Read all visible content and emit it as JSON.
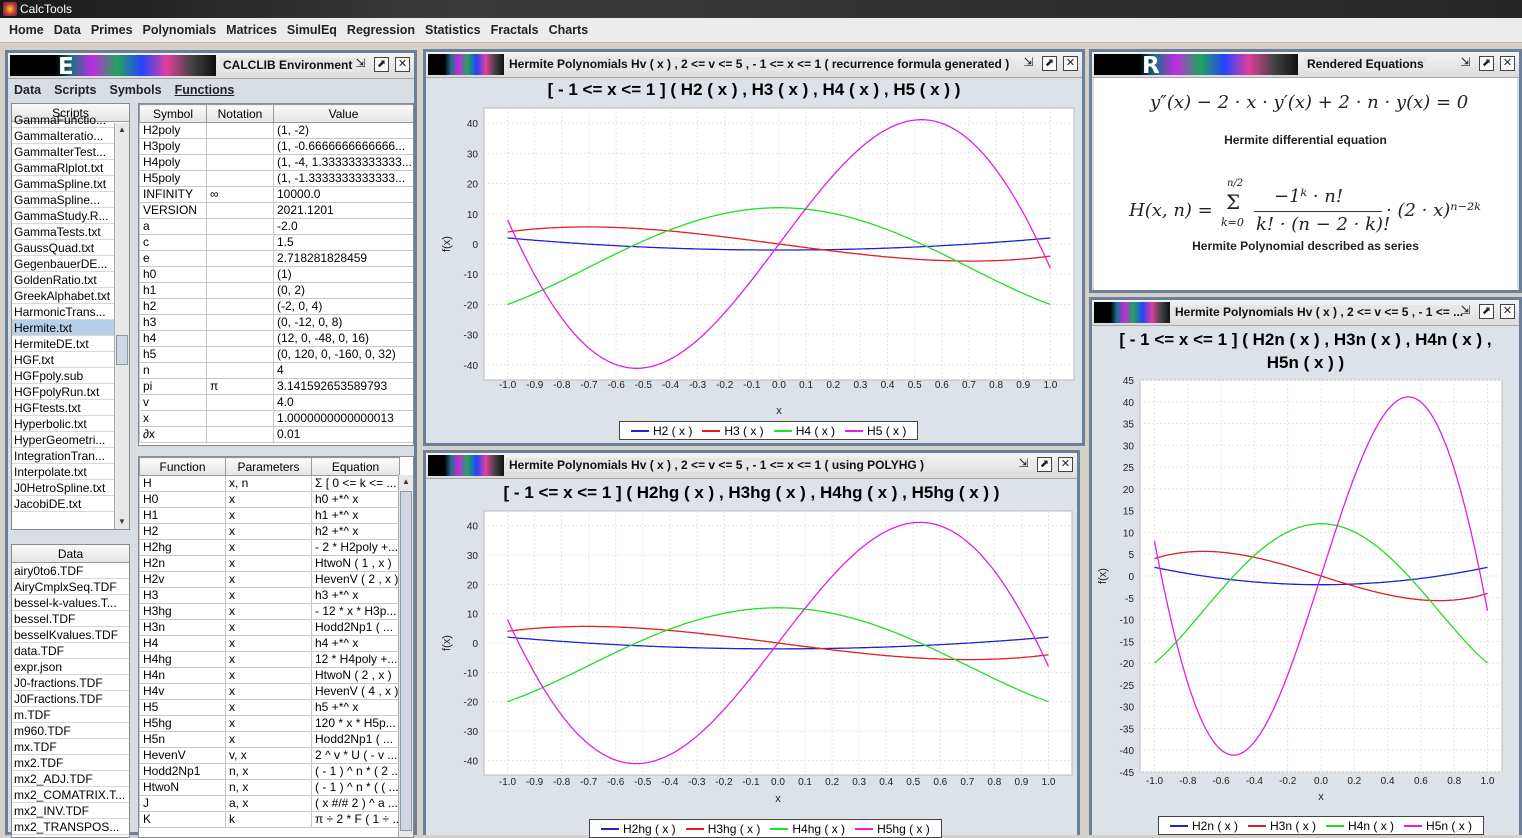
{
  "app": {
    "title": "CalcTools"
  },
  "menu": [
    "Home",
    "Data",
    "Primes",
    "Polynomials",
    "Matrices",
    "SimulEq",
    "Regression",
    "Statistics",
    "Fractals",
    "Charts"
  ],
  "env": {
    "title": "CALCLIB Environment",
    "logo_letter": "E",
    "tabs": [
      "Data",
      "Scripts",
      "Symbols",
      "Functions"
    ],
    "scripts_header": "Scripts",
    "scripts": [
      "GammaFunctio...",
      "GammaIteratio...",
      "GammaIterTest...",
      "GammaRlplot.txt",
      "GammaSpline.txt",
      "GammaSpline...",
      "GammaStudy.R...",
      "GammaTests.txt",
      "GaussQuad.txt",
      "GegenbauerDE...",
      "GoldenRatio.txt",
      "GreekAlphabet.txt",
      "HarmonicTrans...",
      "Hermite.txt",
      "HermiteDE.txt",
      "HGF.txt",
      "HGFpoly.sub",
      "HGFpolyRun.txt",
      "HGFtests.txt",
      "Hyperbolic.txt",
      "HyperGeometri...",
      "IntegrationTran...",
      "Interpolate.txt",
      "J0HetroSpline.txt",
      "JacobiDE.txt"
    ],
    "scripts_selected": "Hermite.txt",
    "data_header": "Data",
    "data_files": [
      "airy0to6.TDF",
      "AiryCmplxSeq.TDF",
      "bessel-k-values.T...",
      "bessel.TDF",
      "besselKvalues.TDF",
      "data.TDF",
      "expr.json",
      "J0-fractions.TDF",
      "J0Fractions.TDF",
      "m.TDF",
      "m960.TDF",
      "mx.TDF",
      "mx2.TDF",
      "mx2_ADJ.TDF",
      "mx2_COMATRIX.T...",
      "mx2_INV.TDF",
      "mx2_TRANSPOS..."
    ],
    "symbols_headers": [
      "Symbol",
      "Notation",
      "Value"
    ],
    "symbols": [
      [
        "H2poly",
        "",
        "(1, -2)"
      ],
      [
        "H3poly",
        "",
        "(1, -0.6666666666666..."
      ],
      [
        "H4poly",
        "",
        "(1, -4, 1.333333333333..."
      ],
      [
        "H5poly",
        "",
        "(1, -1.3333333333333..."
      ],
      [
        "INFINITY",
        "∞",
        "10000.0"
      ],
      [
        "VERSION",
        "",
        "2021.1201"
      ],
      [
        "a",
        "",
        "-2.0"
      ],
      [
        "c",
        "",
        "1.5"
      ],
      [
        "e",
        "",
        "2.718281828459"
      ],
      [
        "h0",
        "",
        "(1)"
      ],
      [
        "h1",
        "",
        "(0, 2)"
      ],
      [
        "h2",
        "",
        "(-2, 0, 4)"
      ],
      [
        "h3",
        "",
        "(0, -12, 0, 8)"
      ],
      [
        "h4",
        "",
        "(12, 0, -48, 0, 16)"
      ],
      [
        "h5",
        "",
        "(0, 120, 0, -160, 0, 32)"
      ],
      [
        "n",
        "",
        "4"
      ],
      [
        "pi",
        "π",
        "3.141592653589793"
      ],
      [
        "v",
        "",
        "4.0"
      ],
      [
        "x",
        "",
        "1.0000000000000013"
      ],
      [
        "∂x",
        "",
        "0.01"
      ]
    ],
    "functions_headers": [
      "Function",
      "Parameters",
      "Equation"
    ],
    "functions": [
      [
        "H",
        "x, n",
        "Σ [ 0 <= k <= ..."
      ],
      [
        "H0",
        "x",
        "h0 +*^ x"
      ],
      [
        "H1",
        "x",
        "h1 +*^ x"
      ],
      [
        "H2",
        "x",
        "h2 +*^ x"
      ],
      [
        "H2hg",
        "x",
        "- 2 * H2poly +..."
      ],
      [
        "H2n",
        "x",
        "HtwoN ( 1 , x )"
      ],
      [
        "H2v",
        "x",
        "HevenV ( 2 , x )"
      ],
      [
        "H3",
        "x",
        "h3 +*^ x"
      ],
      [
        "H3hg",
        "x",
        "- 12 * x * H3p..."
      ],
      [
        "H3n",
        "x",
        "Hodd2Np1 ( ..."
      ],
      [
        "H4",
        "x",
        "h4 +*^ x"
      ],
      [
        "H4hg",
        "x",
        "12 * H4poly +..."
      ],
      [
        "H4n",
        "x",
        "HtwoN ( 2 , x )"
      ],
      [
        "H4v",
        "x",
        "HevenV ( 4 , x )"
      ],
      [
        "H5",
        "x",
        "h5 +*^ x"
      ],
      [
        "H5hg",
        "x",
        "120 * x * H5p..."
      ],
      [
        "H5n",
        "x",
        "Hodd2Np1 ( ..."
      ],
      [
        "HevenV",
        "v, x",
        "2 ^ v * U ( - v ..."
      ],
      [
        "Hodd2Np1",
        "n, x",
        "( - 1 ) ^ n * ( 2 ..."
      ],
      [
        "HtwoN",
        "n, x",
        "( - 1 ) ^ n * ( ( ..."
      ],
      [
        "J",
        "a, x",
        "( x #/# 2 ) ^ a ..."
      ],
      [
        "K",
        "k",
        "π ÷ 2 * F ( 1 ÷ ..."
      ]
    ]
  },
  "rendered": {
    "title": "Rendered Equations",
    "logo_letter": "R",
    "eq1": "y″(x) − 2 · x · y′(x) + 2 · n · y(x) = 0",
    "cap1": "Hermite differential equation",
    "eq2_left": "H(x, n) =",
    "eq2_sum_top": "n/2",
    "eq2_sum_bottom": "k=0",
    "eq2_num": "−1ᵏ · n!",
    "eq2_den": "k! · (n − 2 · k)!",
    "eq2_right": "· (2 · x)ⁿ⁻²ᵏ",
    "cap2": "Hermite Polynomial described as series"
  },
  "colors": {
    "H2": "#2222cc",
    "H3": "#e02020",
    "H4": "#22dd22",
    "H5": "#e020e0",
    "border": "#6a7f98"
  },
  "chart_data": [
    {
      "type": "line",
      "window_title": "Hermite Polynomials Hv ( x ) , 2 <= v <= 5 , - 1 <= x <= 1 ( recurrence formula generated )",
      "title": "[ - 1 <= x <= 1  ]  ( H2 ( x ) , H3 ( x ) , H4 ( x ) , H5 ( x ) )",
      "xlabel": "x",
      "ylabel": "f(x)",
      "xlim": [
        -1,
        1
      ],
      "ylim": [
        -45,
        45
      ],
      "yticks": [
        -40,
        -30,
        -20,
        -10,
        0,
        10,
        20,
        30,
        40
      ],
      "xticks": [
        "-1.0",
        "-0.9",
        "-0.8",
        "-0.7",
        "-0.6",
        "-0.5",
        "-0.4",
        "-0.3",
        "-0.2",
        "-0.1",
        "0.0",
        "0.1",
        "0.2",
        "0.3",
        "0.4",
        "0.5",
        "0.6",
        "0.7",
        "0.8",
        "0.9",
        "1.0"
      ],
      "series": [
        {
          "name": "H2 ( x )",
          "coeffs": [
            -2,
            0,
            4
          ]
        },
        {
          "name": "H3 ( x )",
          "coeffs": [
            0,
            -12,
            0,
            8
          ]
        },
        {
          "name": "H4 ( x )",
          "coeffs": [
            12,
            0,
            -48,
            0,
            16
          ]
        },
        {
          "name": "H5 ( x )",
          "coeffs": [
            0,
            120,
            0,
            -160,
            0,
            32
          ]
        }
      ]
    },
    {
      "type": "line",
      "window_title": "Hermite Polynomials Hv ( x ) , 2 <= v <= 5 , - 1 <= x <= 1 ( using POLYHG )",
      "title": "[ - 1 <= x <= 1  ]  ( H2hg ( x ) , H3hg ( x ) , H4hg ( x ) , H5hg ( x ) )",
      "xlabel": "x",
      "ylabel": "f(x)",
      "xlim": [
        -1,
        1
      ],
      "ylim": [
        -45,
        45
      ],
      "yticks": [
        -40,
        -30,
        -20,
        -10,
        0,
        10,
        20,
        30,
        40
      ],
      "xticks": [
        "-1.0",
        "-0.9",
        "-0.8",
        "-0.7",
        "-0.6",
        "-0.5",
        "-0.4",
        "-0.3",
        "-0.2",
        "-0.1",
        "0.0",
        "0.1",
        "0.2",
        "0.3",
        "0.4",
        "0.5",
        "0.6",
        "0.7",
        "0.8",
        "0.9",
        "1.0"
      ],
      "series": [
        {
          "name": "H2hg ( x )",
          "coeffs": [
            -2,
            0,
            4
          ]
        },
        {
          "name": "H3hg ( x )",
          "coeffs": [
            0,
            -12,
            0,
            8
          ]
        },
        {
          "name": "H4hg ( x )",
          "coeffs": [
            12,
            0,
            -48,
            0,
            16
          ]
        },
        {
          "name": "H5hg ( x )",
          "coeffs": [
            0,
            120,
            0,
            -160,
            0,
            32
          ]
        }
      ]
    },
    {
      "type": "line",
      "window_title": "Hermite Polynomials Hv ( x ) , 2 <= v <= 5 , - 1 <= ...",
      "title_line1": "[ - 1 <= x <= 1  ]  ( H2n ( x ) , H3n ( x ) , H4n ( x ) ,",
      "title_line2": "H5n ( x ) )",
      "xlabel": "x",
      "ylabel": "f(x)",
      "xlim": [
        -1,
        1
      ],
      "ylim": [
        -45,
        45
      ],
      "yticks": [
        -45,
        -40,
        -35,
        -30,
        -25,
        -20,
        -15,
        -10,
        -5,
        0,
        5,
        10,
        15,
        20,
        25,
        30,
        35,
        40,
        45
      ],
      "xticks": [
        "-1.0",
        "-0.8",
        "-0.6",
        "-0.4",
        "-0.2",
        "0.0",
        "0.2",
        "0.4",
        "0.6",
        "0.8",
        "1.0"
      ],
      "series": [
        {
          "name": "H2n ( x )",
          "coeffs": [
            -2,
            0,
            4
          ]
        },
        {
          "name": "H3n ( x )",
          "coeffs": [
            0,
            -12,
            0,
            8
          ]
        },
        {
          "name": "H4n ( x )",
          "coeffs": [
            12,
            0,
            -48,
            0,
            16
          ]
        },
        {
          "name": "H5n ( x )",
          "coeffs": [
            0,
            120,
            0,
            -160,
            0,
            32
          ]
        }
      ]
    }
  ]
}
